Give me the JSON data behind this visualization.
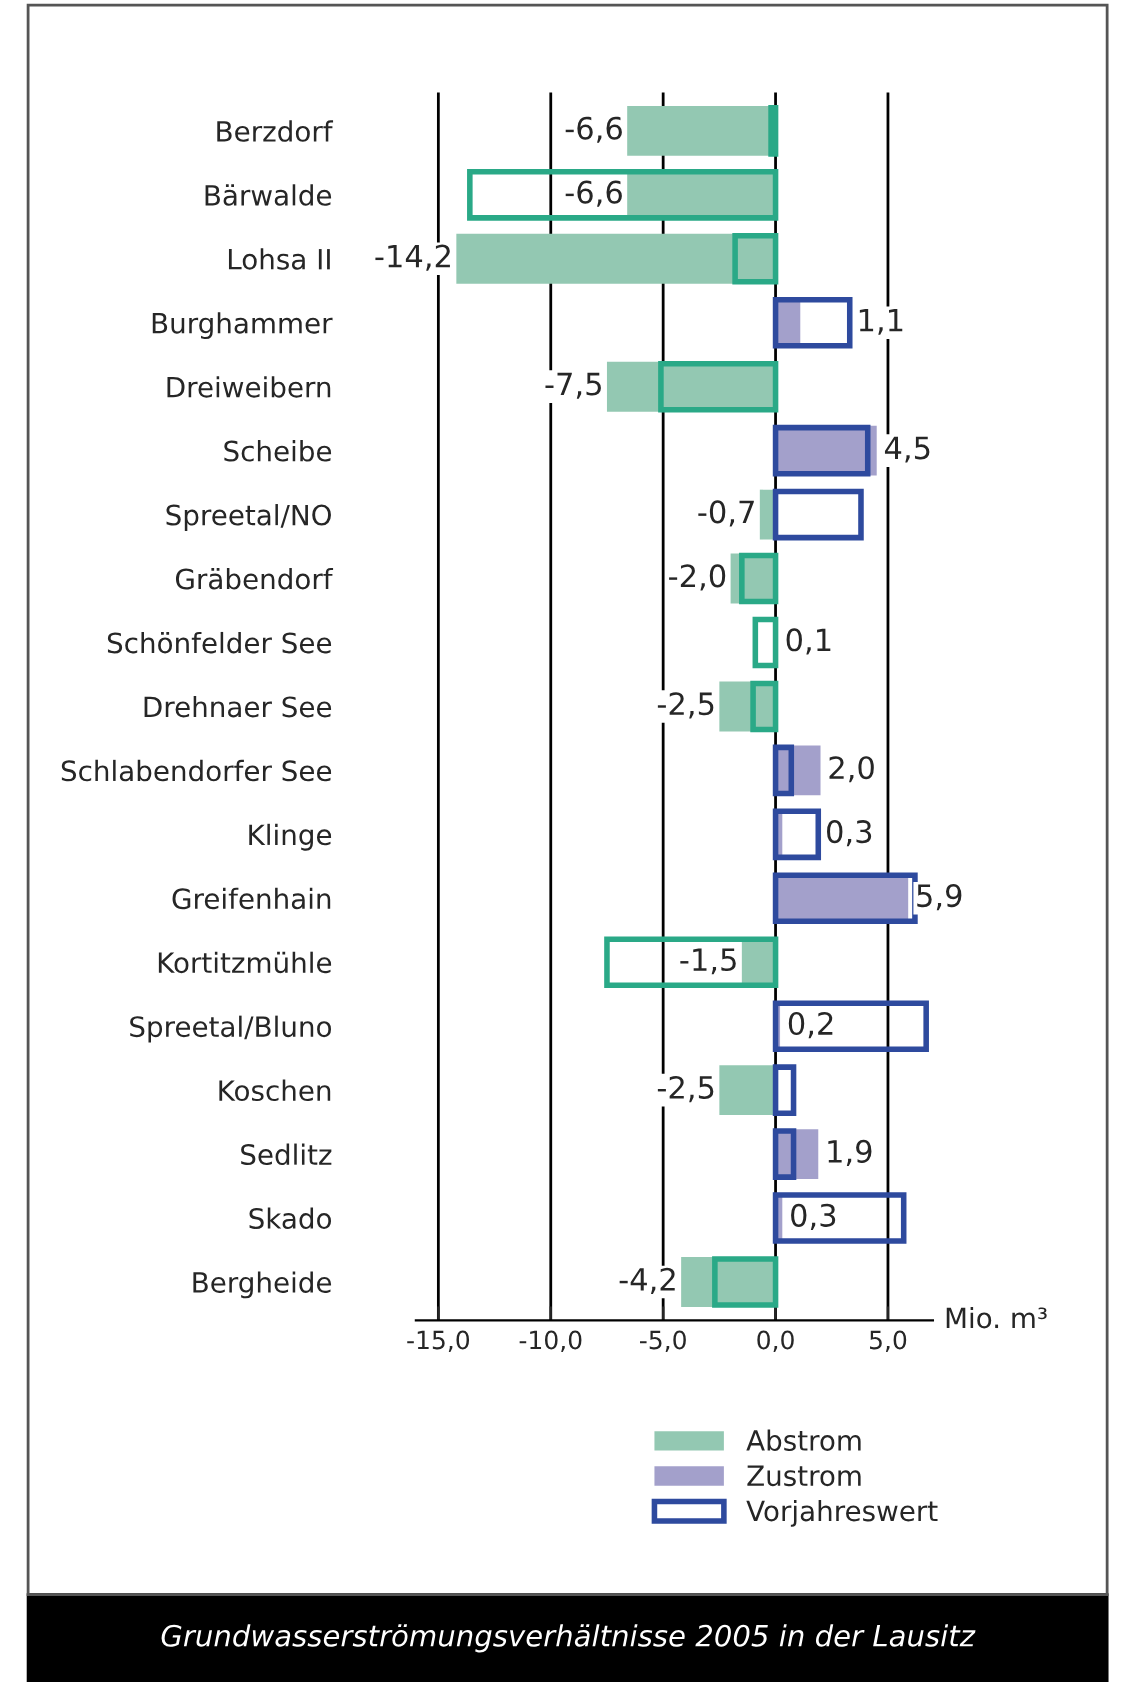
{
  "chart_data": {
    "type": "bar",
    "orientation": "horizontal",
    "title": "Grundwasserströmungsverhältnisse 2005 in der Lausitz",
    "xlabel": "Mio. m³",
    "categories": [
      "Berzdorf",
      "Bärwalde",
      "Lohsa II",
      "Burghammer",
      "Dreiweibern",
      "Scheibe",
      "Spreetal/NO",
      "Gräbendorf",
      "Schönfelder See",
      "Drehnaer See",
      "Schlabendorfer See",
      "Klinge",
      "Greifenhain",
      "Kortitzmühle",
      "Spreetal/Bluno",
      "Koschen",
      "Sedlitz",
      "Skado",
      "Bergheide"
    ],
    "series": [
      {
        "name": "Abstrom",
        "color": "#93c8b2",
        "values": [
          -6.6,
          -6.6,
          -14.2,
          null,
          -7.5,
          null,
          -0.7,
          -2.0,
          null,
          -2.5,
          null,
          null,
          null,
          -1.5,
          null,
          -2.5,
          null,
          null,
          -4.2
        ],
        "value_labels": [
          "-6,6",
          "-6,6",
          "-14,2",
          null,
          "-7,5",
          null,
          "-0,7",
          "-2,0",
          null,
          "-2,5",
          null,
          null,
          null,
          "-1,5",
          null,
          "-2,5",
          null,
          null,
          "-4,2"
        ]
      },
      {
        "name": "Zustrom",
        "color": "#a3a0cb",
        "values": [
          null,
          null,
          null,
          1.1,
          null,
          4.5,
          null,
          null,
          0.1,
          null,
          2.0,
          0.3,
          5.9,
          null,
          0.2,
          null,
          1.9,
          0.3,
          null
        ],
        "value_labels": [
          null,
          null,
          null,
          "1,1",
          null,
          "4,5",
          null,
          null,
          "0,1",
          null,
          "2,0",
          "0,3",
          "5,9",
          null,
          "0,2",
          null,
          "1,9",
          "0,3",
          null
        ]
      },
      {
        "name": "Vorjahreswert",
        "type": "bar",
        "line_style": "solid",
        "color": "#2e4a9e",
        "values": [
          -0.2,
          -13.6,
          -1.8,
          3.3,
          -5.1,
          4.1,
          3.8,
          -1.5,
          -0.9,
          -1.0,
          0.7,
          1.9,
          6.2,
          -7.5,
          6.7,
          0.8,
          0.8,
          5.7,
          -2.7
        ],
        "colors": [
          "#2aa987",
          "#2aa987",
          "#2aa987",
          "#2e4a9e",
          "#2aa987",
          "#2e4a9e",
          "#2e4a9e",
          "#2aa987",
          "#2aa987",
          "#2aa987",
          "#2e4a9e",
          "#2e4a9e",
          "#2e4a9e",
          "#2aa987",
          "#2e4a9e",
          "#2e4a9e",
          "#2e4a9e",
          "#2e4a9e",
          "#2aa987"
        ]
      }
    ],
    "xlim": [
      -16.0,
      7.0
    ],
    "xticks": [
      {
        "value": -15,
        "label": "-15,0"
      },
      {
        "value": -10,
        "label": "-10,0"
      },
      {
        "value": -5,
        "label": "-5,0"
      },
      {
        "value": 0,
        "label": "0,0"
      },
      {
        "value": 5,
        "label": "5,0"
      }
    ],
    "grid": "x",
    "legend": "bottom right"
  }
}
